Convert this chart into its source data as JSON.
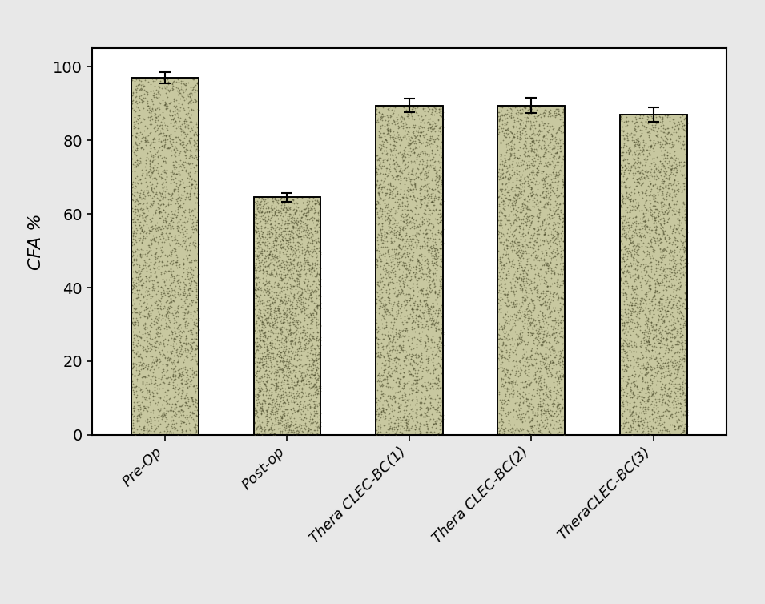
{
  "categories": [
    "Pre-Op",
    "Post-op",
    "Thera CLEC-BC(1)",
    "Thera CLEC-BC(2)",
    "TheraCLEC-BC(3)"
  ],
  "values": [
    97.0,
    64.5,
    89.5,
    89.5,
    87.0
  ],
  "errors": [
    1.5,
    1.2,
    1.8,
    2.0,
    2.0
  ],
  "bar_color_light": "#c8c8a0",
  "bar_color_dark": "#505030",
  "bar_edgecolor": "#000000",
  "ylabel": "CFA %",
  "ylim": [
    0,
    105
  ],
  "yticks": [
    0,
    20,
    40,
    60,
    80,
    100
  ],
  "background_color": "#ffffff",
  "bar_width": 0.55,
  "figure_facecolor": "#e8e8e8",
  "noise_density": 3000,
  "noise_alpha": 0.6,
  "noise_size": 1.5
}
